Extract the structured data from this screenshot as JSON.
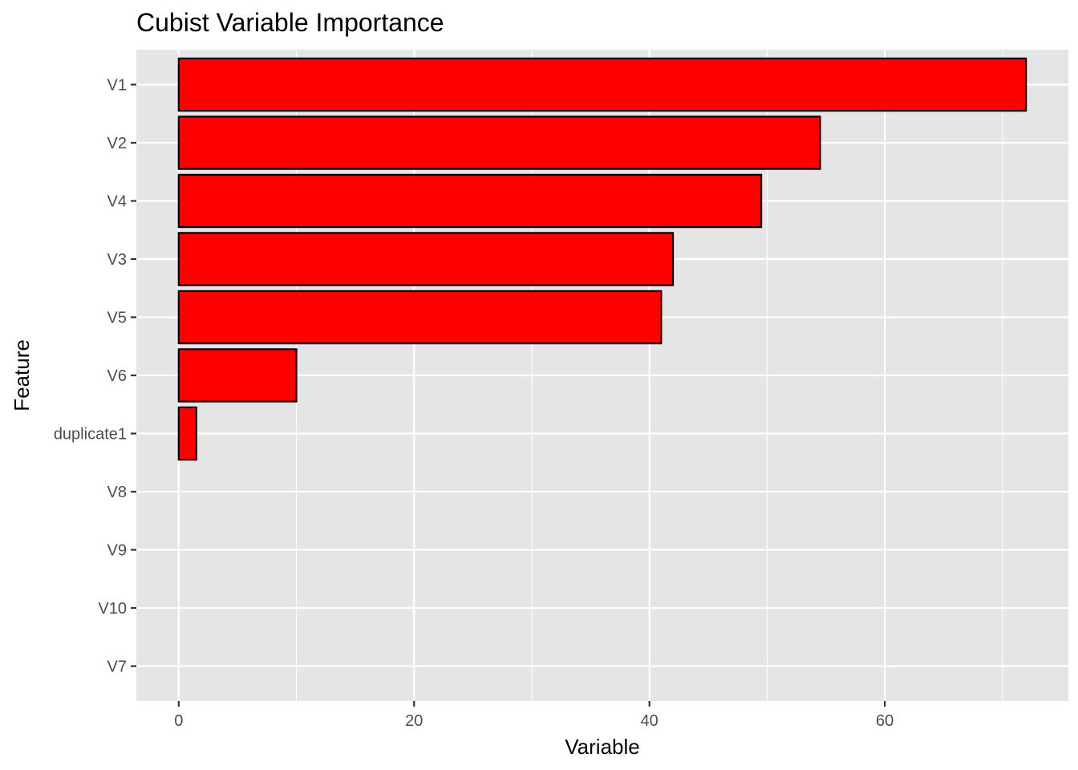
{
  "chart_data": {
    "type": "bar",
    "orientation": "horizontal",
    "title": "Cubist Variable Importance",
    "xlabel": "Variable",
    "ylabel": "Feature",
    "categories": [
      "V1",
      "V2",
      "V4",
      "V3",
      "V5",
      "V6",
      "duplicate1",
      "V8",
      "V9",
      "V10",
      "V7"
    ],
    "values": [
      72,
      54.5,
      49.5,
      42,
      41,
      10,
      1.5,
      0,
      0,
      0,
      0
    ],
    "xlim": [
      -3.6,
      75.6
    ],
    "xticks": [
      0,
      20,
      40,
      60
    ],
    "xtick_labels": [
      "0",
      "20",
      "40",
      "60"
    ],
    "grid": true,
    "legend": "none",
    "colors": {
      "bar_fill": "#ff0000",
      "bar_outline": "#000000",
      "panel_background": "#e5e5e5",
      "grid": "#ffffff"
    }
  }
}
